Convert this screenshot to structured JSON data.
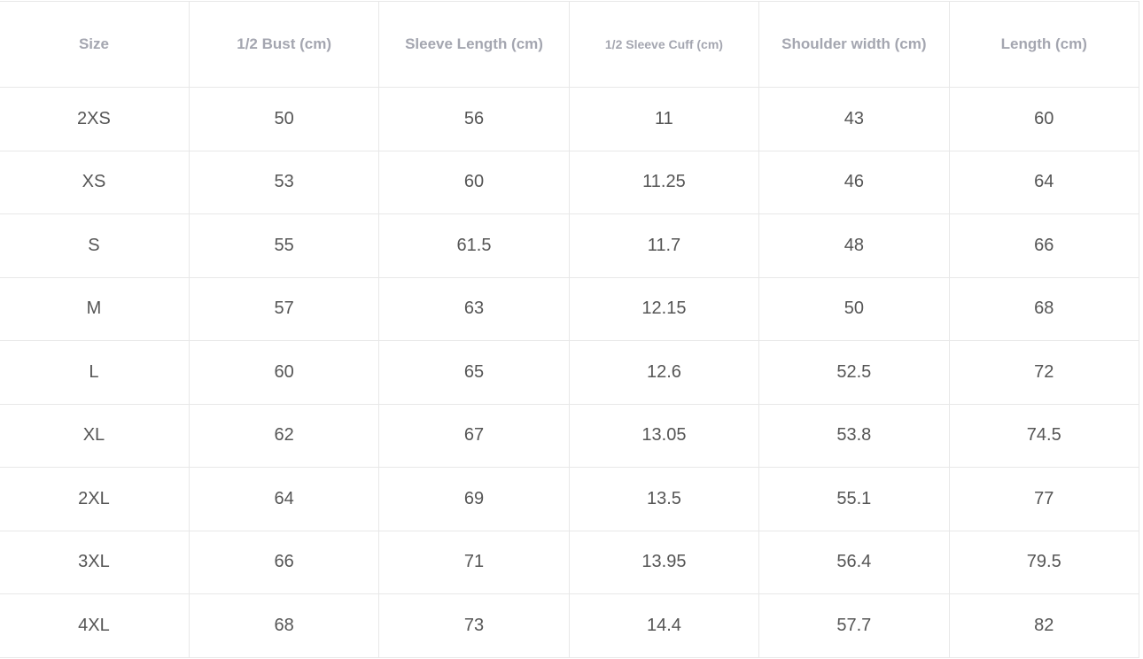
{
  "size_chart": {
    "headers": [
      "Size",
      "1/2 Bust (cm)",
      "Sleeve Length (cm)",
      "1/2 Sleeve Cuff (cm)",
      "Shoulder width (cm)",
      "Length (cm)"
    ],
    "rows": [
      [
        "2XS",
        "50",
        "56",
        "11",
        "43",
        "60"
      ],
      [
        "XS",
        "53",
        "60",
        "11.25",
        "46",
        "64"
      ],
      [
        "S",
        "55",
        "61.5",
        "11.7",
        "48",
        "66"
      ],
      [
        "M",
        "57",
        "63",
        "12.15",
        "50",
        "68"
      ],
      [
        "L",
        "60",
        "65",
        "12.6",
        "52.5",
        "72"
      ],
      [
        "XL",
        "62",
        "67",
        "13.05",
        "53.8",
        "74.5"
      ],
      [
        "2XL",
        "64",
        "69",
        "13.5",
        "55.1",
        "77"
      ],
      [
        "3XL",
        "66",
        "71",
        "13.95",
        "56.4",
        "79.5"
      ],
      [
        "4XL",
        "68",
        "73",
        "14.4",
        "57.7",
        "82"
      ]
    ]
  }
}
